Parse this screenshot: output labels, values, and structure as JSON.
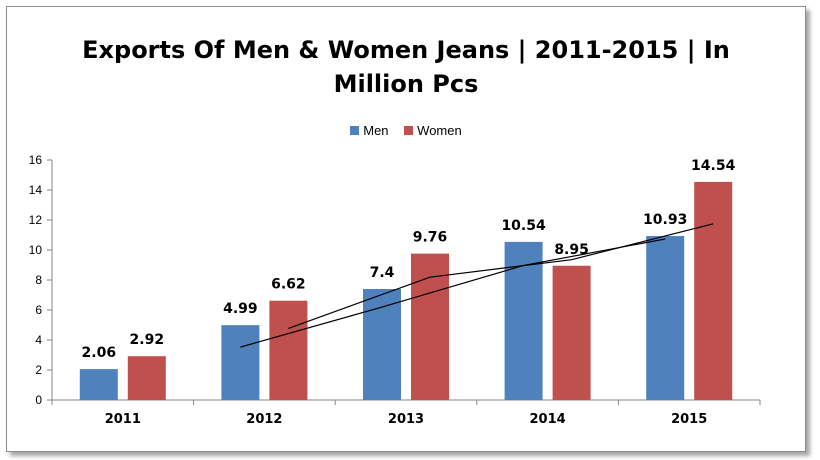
{
  "chart_data": {
    "type": "bar",
    "title_lines": [
      "Exports Of Men & Women Jeans | 2011-2015 | In",
      "Million Pcs"
    ],
    "categories": [
      "2011",
      "2012",
      "2013",
      "2014",
      "2015"
    ],
    "series": [
      {
        "name": "Men",
        "values": [
          2.06,
          4.99,
          7.4,
          10.54,
          10.93
        ],
        "labels": [
          "2.06",
          "4.99",
          "7.4",
          "10.54",
          "10.93"
        ],
        "color": "#4f81bd"
      },
      {
        "name": "Women",
        "values": [
          2.92,
          6.62,
          9.76,
          8.95,
          14.54
        ],
        "labels": [
          "2.92",
          "6.62",
          "9.76",
          "8.95",
          "14.54"
        ],
        "color": "#c0504d"
      }
    ],
    "ylim": [
      0,
      16
    ],
    "yticks": [
      "0",
      "2",
      "4",
      "6",
      "8",
      "10",
      "12",
      "14",
      "16"
    ],
    "ytick_values": [
      0,
      2,
      4,
      6,
      8,
      10,
      12,
      14,
      16
    ],
    "legend_position": "top",
    "grid": false,
    "trendlines": [
      {
        "series": "Men",
        "from_category": "2012",
        "to_category": "2015",
        "type": "moving-average"
      },
      {
        "series": "Women",
        "from_category": "2012",
        "to_category": "2015",
        "type": "moving-average"
      }
    ]
  }
}
